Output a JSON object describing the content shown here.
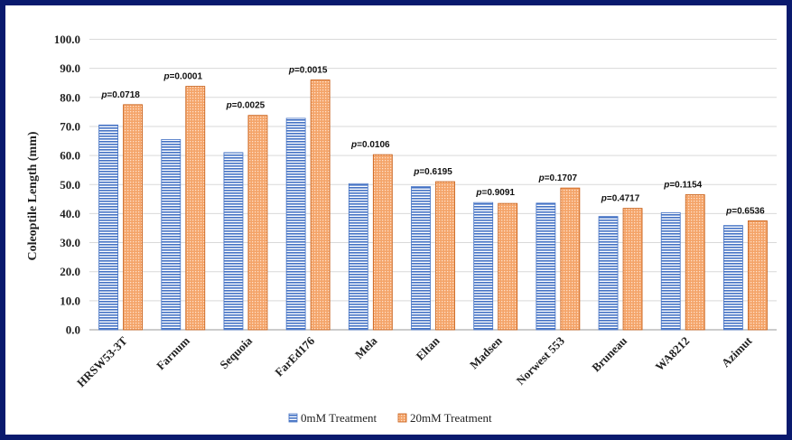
{
  "chart_data": {
    "type": "bar",
    "title": "",
    "xlabel": "",
    "ylabel": "Coleoptile Length (mm)",
    "ylim": [
      0,
      100
    ],
    "yticks": [
      "0.0",
      "10.0",
      "20.0",
      "30.0",
      "40.0",
      "50.0",
      "60.0",
      "70.0",
      "80.0",
      "90.0",
      "100.0"
    ],
    "grid": true,
    "legend_position": "bottom",
    "categories": [
      "HRSW53-3T",
      "Farnum",
      "Sequoia",
      "FarEd176",
      "Mela",
      "Eltan",
      "Madsen",
      "Norwest 553",
      "Bruneau",
      "WA8212",
      "Azimut"
    ],
    "series": [
      {
        "name": "0mM Treatment",
        "color": "#4472c4",
        "values": [
          70.5,
          65.5,
          61.0,
          72.8,
          50.3,
          49.3,
          43.8,
          43.6,
          39.0,
          40.3,
          35.9
        ]
      },
      {
        "name": "20mM Treatment",
        "color": "#ed7d31",
        "values": [
          77.5,
          83.8,
          73.8,
          86.0,
          60.3,
          51.0,
          43.5,
          48.8,
          41.8,
          46.5,
          37.5
        ]
      }
    ],
    "annotations": [
      "p=0.0718",
      "p=0.0001",
      "p=0.0025",
      "p=0.0015",
      "p=0.0106",
      "p=0.6195",
      "p=0.9091",
      "p=0.1707",
      "p=0.4717",
      "p=0.1154",
      "p=0.6536"
    ]
  }
}
